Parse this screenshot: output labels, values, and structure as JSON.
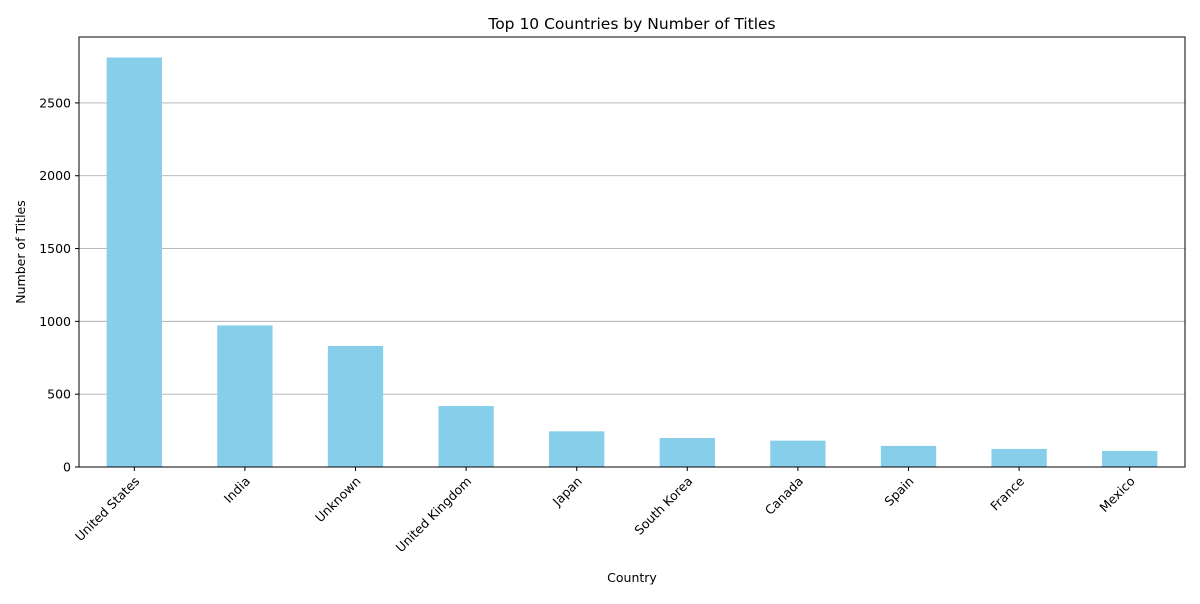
{
  "chart_data": {
    "type": "bar",
    "title": "Top 10 Countries by Number of Titles",
    "xlabel": "Country",
    "ylabel": "Number of Titles",
    "categories": [
      "United States",
      "India",
      "Unknown",
      "United Kingdom",
      "Japan",
      "South Korea",
      "Canada",
      "Spain",
      "France",
      "Mexico"
    ],
    "values": [
      2812,
      972,
      831,
      419,
      245,
      199,
      181,
      145,
      124,
      110
    ],
    "yticks": [
      0,
      500,
      1000,
      1500,
      2000,
      2500
    ],
    "ytick_labels": [
      "0",
      "500",
      "1000",
      "1500",
      "2000",
      "2500"
    ],
    "ylim": [
      0,
      2952.6
    ],
    "grid": "y-axis only",
    "legend": "none",
    "xtick_rotation": 45,
    "colors": {
      "bar": "#87ceeb",
      "grid": "#b0b0b0",
      "axis": "#000000"
    }
  }
}
